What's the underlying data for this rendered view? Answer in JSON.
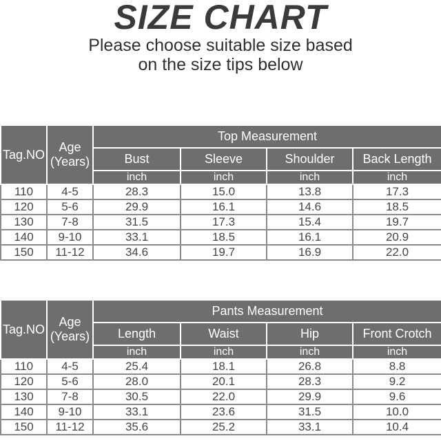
{
  "header": {
    "title": "SIZE CHART",
    "subtitle_line1": "Please choose suitable size based",
    "subtitle_line2": "on the size tips below"
  },
  "tables": [
    {
      "group_label": "Top Measurement",
      "tag_label": "Tag.NO",
      "age_label": "Age",
      "age_unit": "(Years)",
      "columns": [
        "Bust",
        "Sleeve",
        "Shoulder",
        "Back Length"
      ],
      "unit": "inch",
      "rows": [
        [
          "110",
          "4-5",
          "28.3",
          "15.0",
          "13.8",
          "17.3"
        ],
        [
          "120",
          "5-6",
          "29.9",
          "16.1",
          "14.6",
          "18.5"
        ],
        [
          "130",
          "7-8",
          "31.5",
          "17.3",
          "15.4",
          "19.7"
        ],
        [
          "140",
          "9-10",
          "33.1",
          "18.5",
          "16.1",
          "20.9"
        ],
        [
          "150",
          "11-12",
          "34.6",
          "19.7",
          "16.9",
          "22.0"
        ]
      ]
    },
    {
      "group_label": "Pants Measurement",
      "tag_label": "Tag.NO",
      "age_label": "Age",
      "age_unit": "(Years)",
      "columns": [
        "Length",
        "Waist",
        "Hip",
        "Front Crotch"
      ],
      "unit": "inch",
      "rows": [
        [
          "110",
          "4-5",
          "25.4",
          "18.1",
          "26.8",
          "8.8"
        ],
        [
          "120",
          "5-6",
          "28.0",
          "20.1",
          "28.3",
          "9.2"
        ],
        [
          "130",
          "7-8",
          "30.5",
          "22.0",
          "29.9",
          "9.6"
        ],
        [
          "140",
          "9-10",
          "33.1",
          "23.6",
          "31.5",
          "10.0"
        ],
        [
          "150",
          "11-12",
          "35.6",
          "25.2",
          "33.1",
          "10.4"
        ]
      ]
    }
  ],
  "colors": {
    "header_bg": "#6e6e6e",
    "header_text": "#ffffff",
    "cell_border": "#8a8a8a"
  }
}
